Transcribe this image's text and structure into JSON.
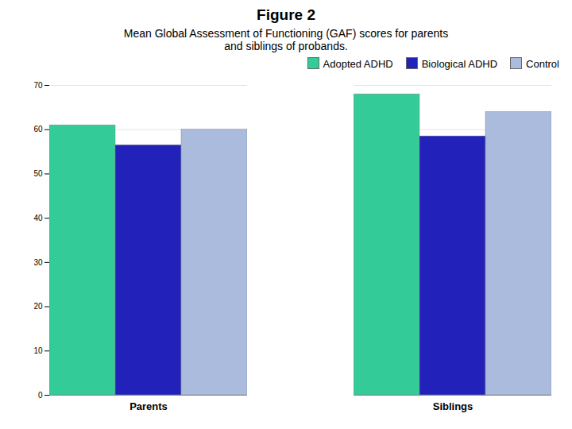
{
  "chart_data": {
    "type": "bar",
    "title": "Figure 2",
    "subtitle": "Mean Global Assessment of Functioning (GAF) scores for parents\nand siblings of probands.",
    "categories": [
      "Parents",
      "Siblings"
    ],
    "series": [
      {
        "name": "Adopted ADHD",
        "color": "#33CC99",
        "values": [
          61.0,
          68.0
        ]
      },
      {
        "name": "Biological ADHD",
        "color": "#2222BB",
        "values": [
          56.5,
          58.5
        ]
      },
      {
        "name": "Control",
        "color": "#AABBDD",
        "values": [
          60.0,
          64.0
        ]
      }
    ],
    "ylim": [
      0,
      70
    ],
    "yticks": [
      0,
      10,
      20,
      30,
      40,
      50,
      60,
      70
    ],
    "grid": true,
    "legend": "upper right"
  }
}
